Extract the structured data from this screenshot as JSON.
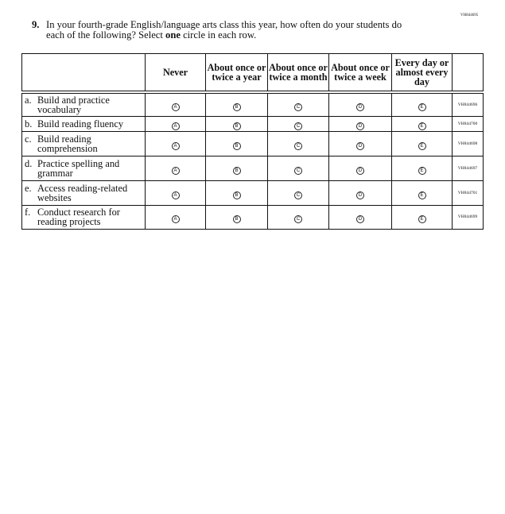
{
  "page_code": "VH844695",
  "question": {
    "number": "9.",
    "text_before": "In your fourth-grade English/language arts class this year, how often do your students do each of the following? Select ",
    "emphasis": "one",
    "text_after": " circle in each row."
  },
  "columns": [
    "Never",
    "About once or twice a year",
    "About once or twice a month",
    "About once or twice a week",
    "Every day or almost every day"
  ],
  "bubble_letters": [
    "A",
    "B",
    "C",
    "D",
    "E"
  ],
  "rows": [
    {
      "letter": "a.",
      "label": "Build and practice vocabulary",
      "code": "VH844696"
    },
    {
      "letter": "b.",
      "label": "Build reading fluency",
      "code": "VH844700"
    },
    {
      "letter": "c.",
      "label": "Build reading comprehension",
      "code": "VH844698"
    },
    {
      "letter": "d.",
      "label": "Practice spelling and grammar",
      "code": "VH844697"
    },
    {
      "letter": "e.",
      "label": "Access reading-related websites",
      "code": "VH844701"
    },
    {
      "letter": "f.",
      "label": "Conduct research for reading projects",
      "code": "VH844699"
    }
  ]
}
